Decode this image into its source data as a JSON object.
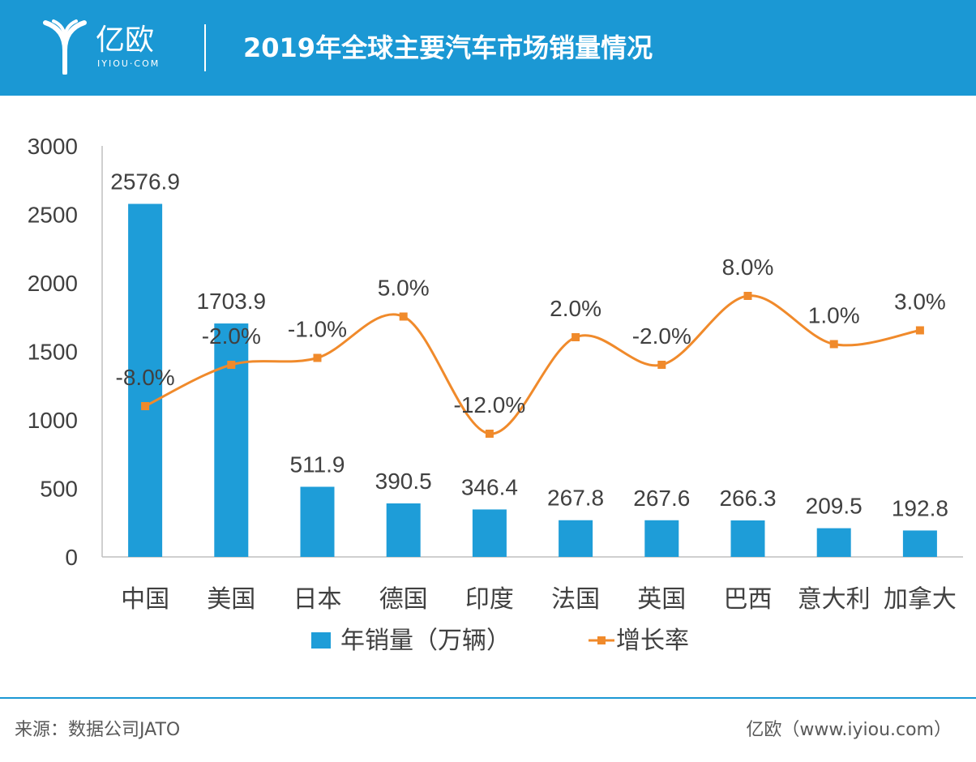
{
  "header": {
    "brand": "亿欧",
    "brand_sub": "IYIOU·COM",
    "title": "2019年全球主要汽车市场销量情况"
  },
  "footer": {
    "source": "来源：数据公司JATO",
    "credit": "亿欧（www.iyiou.com）"
  },
  "colors": {
    "header_bg": "#1b98d4",
    "bar": "#1e9dd8",
    "line": "#f08a2b",
    "text": "#404040"
  },
  "chart_data": {
    "type": "bar",
    "categories": [
      "中国",
      "美国",
      "日本",
      "德国",
      "印度",
      "法国",
      "英国",
      "巴西",
      "意大利",
      "加拿大"
    ],
    "ylim": [
      0,
      3000
    ],
    "yticks": [
      0,
      500,
      1000,
      1500,
      2000,
      2500,
      3000
    ],
    "series": [
      {
        "name": "年销量（万辆）",
        "type": "bar",
        "values": [
          2576.9,
          1703.9,
          511.9,
          390.5,
          346.4,
          267.8,
          267.6,
          266.3,
          209.5,
          192.8
        ],
        "labels": [
          "2576.9",
          "1703.9",
          "511.9",
          "390.5",
          "346.4",
          "267.8",
          "267.6",
          "266.3",
          "209.5",
          "192.8"
        ]
      },
      {
        "name": "增长率",
        "type": "line",
        "values": [
          -8.0,
          -2.0,
          -1.0,
          5.0,
          -12.0,
          2.0,
          -2.0,
          8.0,
          1.0,
          3.0
        ],
        "labels": [
          "-8.0%",
          "-2.0%",
          "-1.0%",
          "5.0%",
          "-12.0%",
          "2.0%",
          "-2.0%",
          "8.0%",
          "1.0%",
          "3.0%"
        ]
      }
    ],
    "legend_position": "bottom",
    "grid": false
  }
}
